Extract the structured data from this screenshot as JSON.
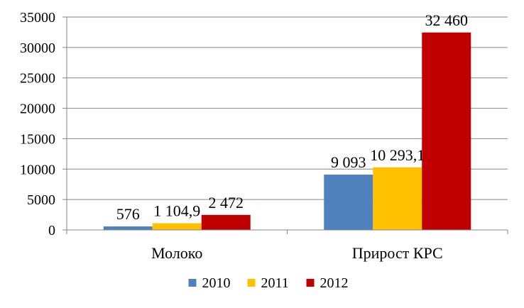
{
  "chart_data": {
    "type": "bar",
    "title": "",
    "xlabel": "",
    "ylabel": "",
    "categories": [
      "Молоко",
      "Прирост КРС"
    ],
    "series": [
      {
        "name": "2010",
        "color": "#4F81BD",
        "values": [
          576,
          9093
        ],
        "labels": [
          "576",
          "9 093"
        ]
      },
      {
        "name": "2011",
        "color": "#FFC000",
        "values": [
          1104.9,
          10293.1
        ],
        "labels": [
          "1 104,9",
          "10 293,1"
        ]
      },
      {
        "name": "2012",
        "color": "#C00000",
        "values": [
          2472,
          32460
        ],
        "labels": [
          "2 472",
          "32 460"
        ]
      }
    ],
    "ylim": [
      0,
      35000
    ],
    "yticks": [
      0,
      5000,
      10000,
      15000,
      20000,
      25000,
      30000,
      35000
    ],
    "grid": true,
    "legend": "bottom"
  }
}
